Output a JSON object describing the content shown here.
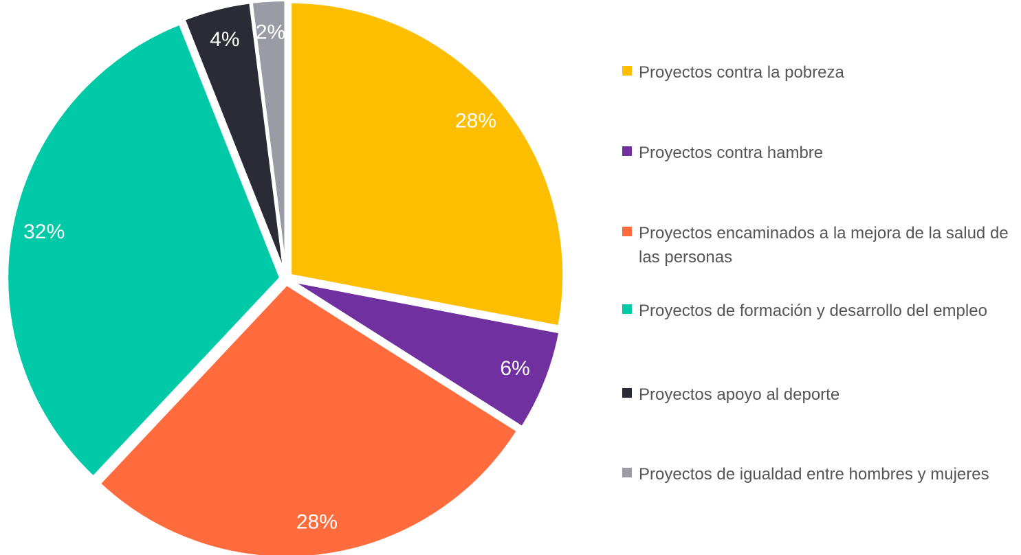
{
  "chart_data": {
    "type": "pie",
    "categories": [
      "Proyectos contra la pobreza",
      "Proyectos contra hambre",
      "Proyectos encaminados a la mejora de la salud de las personas",
      "Proyectos de formación y desarrollo del empleo",
      "Proyectos apoyo al deporte",
      "Proyectos de igualdad entre hombres y mujeres"
    ],
    "values": [
      28,
      6,
      28,
      32,
      4,
      2
    ],
    "value_labels": [
      "28%",
      "6%",
      "28%",
      "32%",
      "4%",
      "2%"
    ],
    "colors": [
      "#FDBE00",
      "#7030A0",
      "#FF6B3D",
      "#00C9A7",
      "#2B2B35",
      "#9B9BA5"
    ],
    "legend": "right"
  }
}
